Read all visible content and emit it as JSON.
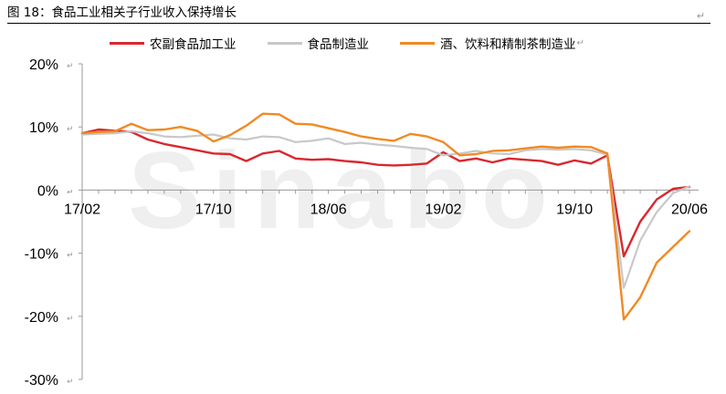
{
  "figure": {
    "title": "图 18：食品工业相关子行业收入保持增长",
    "return_mark": "↵",
    "watermark": "Sinabo"
  },
  "colors": {
    "series": [
      "#d9272e",
      "#c8c8c8",
      "#f08a24"
    ],
    "axis": "#999999"
  },
  "chart_data": {
    "type": "line",
    "title": "图 18：食品工业相关子行业收入保持增长",
    "xlabel": "",
    "ylabel": "",
    "ylim": [
      -30,
      20
    ],
    "yticks": [
      "20%",
      "10%",
      "0%",
      "-10%",
      "-20%",
      "-30%"
    ],
    "ytick_values": [
      20,
      10,
      0,
      -10,
      -20,
      -30
    ],
    "xticks": [
      "17/02",
      "17/10",
      "18/06",
      "19/02",
      "19/10",
      "20/06"
    ],
    "x": [
      "17/02",
      "17/03",
      "17/04",
      "17/05",
      "17/06",
      "17/07",
      "17/08",
      "17/09",
      "17/10",
      "17/11",
      "17/12",
      "18/02",
      "18/03",
      "18/04",
      "18/05",
      "18/06",
      "18/07",
      "18/08",
      "18/09",
      "18/10",
      "18/11",
      "18/12",
      "19/02",
      "19/03",
      "19/04",
      "19/05",
      "19/06",
      "19/07",
      "19/08",
      "19/09",
      "19/10",
      "19/11",
      "19/12",
      "20/02",
      "20/03",
      "20/04",
      "20/05",
      "20/06"
    ],
    "grid": false,
    "legend_position": "top",
    "series": [
      {
        "name": "农副食品加工业",
        "values": [
          9.0,
          9.6,
          9.4,
          9.2,
          8.0,
          7.3,
          6.8,
          6.3,
          5.8,
          5.7,
          4.6,
          5.8,
          6.2,
          5.0,
          4.8,
          4.9,
          4.6,
          4.4,
          4.0,
          3.9,
          4.0,
          4.2,
          6.0,
          4.6,
          5.0,
          4.4,
          5.0,
          4.8,
          4.6,
          4.0,
          4.7,
          4.2,
          5.5,
          -10.5,
          -5.0,
          -1.5,
          0.2,
          0.5
        ]
      },
      {
        "name": "食品制造业",
        "values": [
          8.8,
          8.9,
          9.0,
          9.3,
          9.0,
          8.5,
          8.4,
          8.6,
          8.8,
          8.2,
          8.0,
          8.5,
          8.4,
          7.6,
          7.8,
          8.2,
          7.3,
          7.5,
          7.2,
          7.0,
          6.7,
          6.5,
          5.5,
          5.8,
          6.2,
          5.8,
          5.7,
          6.3,
          6.5,
          6.4,
          6.5,
          6.3,
          5.6,
          -15.5,
          -8.0,
          -3.5,
          -0.5,
          0.6
        ]
      },
      {
        "name": "酒、饮料和精制茶制造业",
        "values": [
          9.0,
          9.2,
          9.3,
          10.5,
          9.5,
          9.6,
          10.0,
          9.4,
          7.7,
          8.7,
          10.2,
          12.1,
          12.0,
          10.5,
          10.4,
          9.8,
          9.2,
          8.5,
          8.1,
          7.8,
          8.9,
          8.5,
          7.6,
          5.5,
          5.7,
          6.2,
          6.3,
          6.6,
          6.9,
          6.7,
          6.9,
          6.8,
          5.8,
          -20.5,
          -17.0,
          -11.5,
          -9.0,
          -6.5
        ]
      }
    ]
  }
}
